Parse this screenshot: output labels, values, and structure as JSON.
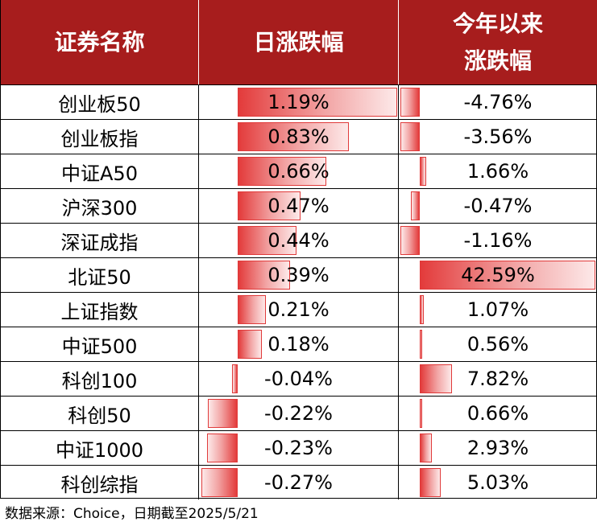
{
  "header": {
    "name_col": "证券名称",
    "day_col": "日涨跌幅",
    "ytd_col_line1": "今年以来",
    "ytd_col_line2": "涨跌幅"
  },
  "footer": {
    "source": "数据来源：Choice，日期截至2025/5/21"
  },
  "colors": {
    "header_bg": "#a71d1d",
    "bar_red": "#e33b3b",
    "bar_light": "#fde9e9"
  },
  "chart_data": {
    "type": "table",
    "columns": [
      "证券名称",
      "日涨跌幅",
      "今年以来涨跌幅"
    ],
    "rows": [
      {
        "name": "创业板50",
        "day": 1.19,
        "day_label": "1.19%",
        "ytd": -4.76,
        "ytd_label": "-4.76%"
      },
      {
        "name": "创业板指",
        "day": 0.83,
        "day_label": "0.83%",
        "ytd": -3.56,
        "ytd_label": "-3.56%"
      },
      {
        "name": "中证A50",
        "day": 0.66,
        "day_label": "0.66%",
        "ytd": 1.66,
        "ytd_label": "1.66%"
      },
      {
        "name": "沪深300",
        "day": 0.47,
        "day_label": "0.47%",
        "ytd": -0.47,
        "ytd_label": "-0.47%"
      },
      {
        "name": "深证成指",
        "day": 0.44,
        "day_label": "0.44%",
        "ytd": -1.16,
        "ytd_label": "-1.16%"
      },
      {
        "name": "北证50",
        "day": 0.39,
        "day_label": "0.39%",
        "ytd": 42.59,
        "ytd_label": "42.59%"
      },
      {
        "name": "上证指数",
        "day": 0.21,
        "day_label": "0.21%",
        "ytd": 1.07,
        "ytd_label": "1.07%"
      },
      {
        "name": "中证500",
        "day": 0.18,
        "day_label": "0.18%",
        "ytd": 0.56,
        "ytd_label": "0.56%"
      },
      {
        "name": "科创100",
        "day": -0.04,
        "day_label": "-0.04%",
        "ytd": 7.82,
        "ytd_label": "7.82%"
      },
      {
        "name": "科创50",
        "day": -0.22,
        "day_label": "-0.22%",
        "ytd": 0.66,
        "ytd_label": "0.66%"
      },
      {
        "name": "中证1000",
        "day": -0.23,
        "day_label": "-0.23%",
        "ytd": 2.93,
        "ytd_label": "2.93%"
      },
      {
        "name": "科创综指",
        "day": -0.27,
        "day_label": "-0.27%",
        "ytd": 5.03,
        "ytd_label": "5.03%"
      }
    ]
  }
}
